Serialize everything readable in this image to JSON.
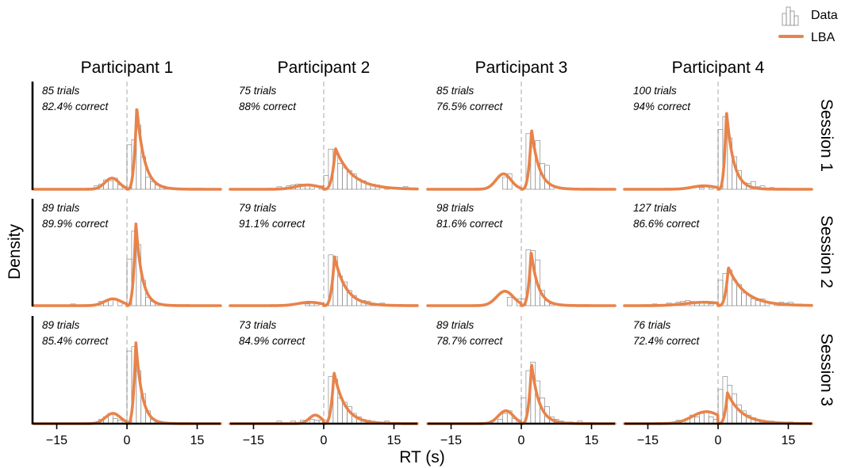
{
  "chart_data": {
    "type": "histogram-density-grid",
    "xlabel": "RT (s)",
    "ylabel": "Density",
    "xlim": [
      -20,
      20
    ],
    "xticks": [
      -15,
      0,
      15
    ],
    "participants": [
      "Participant 1",
      "Participant 2",
      "Participant 3",
      "Participant 4"
    ],
    "sessions": [
      "Session 1",
      "Session 2",
      "Session 3"
    ],
    "legend": [
      {
        "label": "Data",
        "kind": "histogram",
        "color": "#8a8a8a"
      },
      {
        "label": "LBA",
        "kind": "line",
        "color": "#E8834A"
      }
    ],
    "colors": {
      "model": "#E8834A",
      "bars": "#8a8a8a",
      "zero_line": "#c8c8c8",
      "axis": "#000000"
    },
    "panels": [
      {
        "session": 1,
        "participant": 1,
        "trials_label": "85 trials",
        "correct_label": "82.4% correct",
        "ymax": 1.0,
        "hist": [
          [
            -7,
            0.04
          ],
          [
            -6,
            0.06
          ],
          [
            -5,
            0.11
          ],
          [
            -4,
            0.1
          ],
          [
            -3,
            0.13
          ],
          [
            -2,
            0.05
          ],
          [
            -1,
            0.03
          ],
          [
            1,
            0.52
          ],
          [
            2,
            0.58
          ],
          [
            3,
            0.75
          ],
          [
            4,
            0.38
          ],
          [
            5,
            0.14
          ],
          [
            6,
            0.09
          ],
          [
            7,
            0.05
          ],
          [
            8,
            0.04
          ],
          [
            9,
            0.02
          ],
          [
            11,
            0.01
          ]
        ],
        "lba": {
          "err_peak": 0.13,
          "err_mode": -3.2,
          "err_width": 1.5,
          "cor_peak": 0.96,
          "cor_mode": 2.1,
          "cor_tau": 1.6
        }
      },
      {
        "session": 1,
        "participant": 2,
        "trials_label": "75 trials",
        "correct_label": "88% correct",
        "ymax": 1.0,
        "hist": [
          [
            -10,
            0.03
          ],
          [
            -8,
            0.04
          ],
          [
            -7,
            0.05
          ],
          [
            -6,
            0.06
          ],
          [
            -5,
            0.06
          ],
          [
            -4,
            0.05
          ],
          [
            -3,
            0.04
          ],
          [
            -1,
            0.04
          ],
          [
            1,
            0.16
          ],
          [
            2,
            0.47
          ],
          [
            3,
            0.4
          ],
          [
            4,
            0.3
          ],
          [
            5,
            0.25
          ],
          [
            6,
            0.22
          ],
          [
            7,
            0.18
          ],
          [
            8,
            0.12
          ],
          [
            9,
            0.1
          ],
          [
            10,
            0.07
          ],
          [
            11,
            0.06
          ],
          [
            12,
            0.05
          ],
          [
            14,
            0.03
          ],
          [
            16,
            0.02
          ],
          [
            18,
            0.03
          ]
        ],
        "lba": {
          "err_peak": 0.05,
          "err_mode": -3.5,
          "err_width": 2.5,
          "cor_peak": 0.48,
          "cor_mode": 2.5,
          "cor_tau": 3.5
        }
      },
      {
        "session": 1,
        "participant": 3,
        "trials_label": "85 trials",
        "correct_label": "76.5% correct",
        "ymax": 1.0,
        "hist": [
          [
            -4,
            0.14
          ],
          [
            -3,
            0.18
          ],
          [
            2,
            0.65
          ],
          [
            3,
            0.5
          ],
          [
            4,
            0.57
          ],
          [
            5,
            0.3
          ],
          [
            6,
            0.28
          ],
          [
            7,
            0.04
          ]
        ],
        "lba": {
          "err_peak": 0.18,
          "err_mode": -3.8,
          "err_width": 1.6,
          "cor_peak": 0.7,
          "cor_mode": 2.2,
          "cor_tau": 1.6
        }
      },
      {
        "session": 1,
        "participant": 4,
        "trials_label": "100 trials",
        "correct_label": "94% correct",
        "ymax": 1.0,
        "hist": [
          [
            -4,
            0.02
          ],
          [
            -2,
            0.02
          ],
          [
            1,
            0.7
          ],
          [
            2,
            0.85
          ],
          [
            3,
            0.6
          ],
          [
            4,
            0.38
          ],
          [
            5,
            0.22
          ],
          [
            6,
            0.08
          ],
          [
            7,
            0.07
          ],
          [
            8,
            0.09
          ],
          [
            9,
            0.03
          ],
          [
            10,
            0.04
          ],
          [
            12,
            0.02
          ]
        ],
        "lba": {
          "err_peak": 0.04,
          "err_mode": -3.0,
          "err_width": 2.5,
          "cor_peak": 0.91,
          "cor_mode": 1.8,
          "cor_tau": 1.5
        }
      },
      {
        "session": 2,
        "participant": 1,
        "trials_label": "89 trials",
        "correct_label": "89.9% correct",
        "ymax": 1.0,
        "hist": [
          [
            -12,
            0.02
          ],
          [
            -6,
            0.05
          ],
          [
            -5,
            0.05
          ],
          [
            -4,
            0.08
          ],
          [
            -2,
            0.05
          ],
          [
            1,
            0.55
          ],
          [
            2,
            0.88
          ],
          [
            3,
            0.72
          ],
          [
            4,
            0.3
          ],
          [
            5,
            0.1
          ],
          [
            6,
            0.05
          ],
          [
            7,
            0.02
          ]
        ],
        "lba": {
          "err_peak": 0.08,
          "err_mode": -3.0,
          "err_width": 1.8,
          "cor_peak": 0.98,
          "cor_mode": 1.9,
          "cor_tau": 1.3
        }
      },
      {
        "session": 2,
        "participant": 2,
        "trials_label": "79 trials",
        "correct_label": "91.1% correct",
        "ymax": 1.0,
        "hist": [
          [
            -4,
            0.02
          ],
          [
            -3,
            0.04
          ],
          [
            -2,
            0.04
          ],
          [
            1,
            0.02
          ],
          [
            2,
            0.6
          ],
          [
            3,
            0.58
          ],
          [
            4,
            0.35
          ],
          [
            5,
            0.28
          ],
          [
            6,
            0.18
          ],
          [
            7,
            0.12
          ],
          [
            8,
            0.07
          ],
          [
            9,
            0.06
          ],
          [
            10,
            0.05
          ],
          [
            11,
            0.03
          ],
          [
            12,
            0.02
          ],
          [
            13,
            0.03
          ]
        ],
        "lba": {
          "err_peak": 0.04,
          "err_mode": -3.0,
          "err_width": 2.5,
          "cor_peak": 0.58,
          "cor_mode": 2.3,
          "cor_tau": 2.4
        }
      },
      {
        "session": 2,
        "participant": 3,
        "trials_label": "98 trials",
        "correct_label": "81.6% correct",
        "ymax": 1.0,
        "hist": [
          [
            -3,
            0.1
          ],
          [
            -1,
            0.08
          ],
          [
            1,
            0.08
          ],
          [
            2,
            0.66
          ],
          [
            3,
            0.65
          ],
          [
            4,
            0.54
          ],
          [
            5,
            0.18
          ],
          [
            6,
            0.06
          ],
          [
            7,
            0.02
          ]
        ],
        "lba": {
          "err_peak": 0.17,
          "err_mode": -3.5,
          "err_width": 1.8,
          "cor_peak": 0.64,
          "cor_mode": 2.1,
          "cor_tau": 1.5
        }
      },
      {
        "session": 2,
        "participant": 4,
        "trials_label": "127 trials",
        "correct_label": "86.6% correct",
        "ymax": 1.0,
        "hist": [
          [
            -14,
            0.02
          ],
          [
            -11,
            0.03
          ],
          [
            -9,
            0.04
          ],
          [
            -8,
            0.05
          ],
          [
            -7,
            0.06
          ],
          [
            -6,
            0.05
          ],
          [
            -5,
            0.04
          ],
          [
            -4,
            0.05
          ],
          [
            -3,
            0.03
          ],
          [
            -2,
            0.02
          ],
          [
            1,
            0.3
          ],
          [
            2,
            0.38
          ],
          [
            3,
            0.42
          ],
          [
            4,
            0.3
          ],
          [
            5,
            0.25
          ],
          [
            6,
            0.15
          ],
          [
            7,
            0.13
          ],
          [
            8,
            0.08
          ],
          [
            9,
            0.06
          ],
          [
            10,
            0.08
          ],
          [
            11,
            0.04
          ],
          [
            13,
            0.02
          ],
          [
            14,
            0.04
          ],
          [
            15,
            0.03
          ],
          [
            16,
            0.04
          ],
          [
            17,
            0.02
          ],
          [
            18,
            0.02
          ]
        ],
        "lba": {
          "err_peak": 0.04,
          "err_mode": -3.0,
          "err_width": 4.0,
          "cor_peak": 0.45,
          "cor_mode": 2.2,
          "cor_tau": 3.5
        }
      },
      {
        "session": 3,
        "participant": 1,
        "trials_label": "89 trials",
        "correct_label": "85.4% correct",
        "ymax": 1.0,
        "hist": [
          [
            -6,
            0.05
          ],
          [
            -5,
            0.08
          ],
          [
            -4,
            0.12
          ],
          [
            -3,
            0.06
          ],
          [
            -2,
            0.04
          ],
          [
            1,
            0.85
          ],
          [
            2,
            0.9
          ],
          [
            3,
            0.62
          ],
          [
            4,
            0.35
          ],
          [
            5,
            0.15
          ],
          [
            6,
            0.05
          ],
          [
            7,
            0.02
          ]
        ],
        "lba": {
          "err_peak": 0.12,
          "err_mode": -3.0,
          "err_width": 1.6,
          "cor_peak": 0.96,
          "cor_mode": 1.9,
          "cor_tau": 1.3
        }
      },
      {
        "session": 3,
        "participant": 2,
        "trials_label": "73 trials",
        "correct_label": "84.9% correct",
        "ymax": 1.0,
        "hist": [
          [
            -10,
            0.03
          ],
          [
            -7,
            0.03
          ],
          [
            -5,
            0.04
          ],
          [
            -3,
            0.05
          ],
          [
            -2,
            0.04
          ],
          [
            -1,
            0.04
          ],
          [
            1,
            0.04
          ],
          [
            2,
            0.55
          ],
          [
            3,
            0.52
          ],
          [
            4,
            0.3
          ],
          [
            5,
            0.25
          ],
          [
            6,
            0.2
          ],
          [
            7,
            0.12
          ],
          [
            8,
            0.08
          ],
          [
            9,
            0.05
          ],
          [
            10,
            0.04
          ],
          [
            11,
            0.03
          ],
          [
            14,
            0.03
          ]
        ],
        "lba": {
          "err_peak": 0.1,
          "err_mode": -1.8,
          "err_width": 1.3,
          "cor_peak": 0.6,
          "cor_mode": 2.2,
          "cor_tau": 2.3
        }
      },
      {
        "session": 3,
        "participant": 3,
        "trials_label": "89 trials",
        "correct_label": "78.7% correct",
        "ymax": 1.0,
        "hist": [
          [
            -5,
            0.05
          ],
          [
            -4,
            0.12
          ],
          [
            -3,
            0.15
          ],
          [
            -2,
            0.06
          ],
          [
            1,
            0.3
          ],
          [
            2,
            0.62
          ],
          [
            3,
            0.72
          ],
          [
            4,
            0.5
          ],
          [
            5,
            0.3
          ],
          [
            6,
            0.2
          ],
          [
            7,
            0.08
          ],
          [
            8,
            0.05
          ],
          [
            9,
            0.03
          ],
          [
            11,
            0.02
          ],
          [
            13,
            0.03
          ]
        ],
        "lba": {
          "err_peak": 0.15,
          "err_mode": -3.3,
          "err_width": 1.6,
          "cor_peak": 0.7,
          "cor_mode": 2.2,
          "cor_tau": 1.6
        }
      },
      {
        "session": 3,
        "participant": 4,
        "trials_label": "76 trials",
        "correct_label": "72.4% correct",
        "ymax": 1.0,
        "hist": [
          [
            -9,
            0.04
          ],
          [
            -7,
            0.06
          ],
          [
            -6,
            0.1
          ],
          [
            -5,
            0.08
          ],
          [
            -4,
            0.12
          ],
          [
            -3,
            0.14
          ],
          [
            -2,
            0.08
          ],
          [
            -1,
            0.05
          ],
          [
            1,
            0.4
          ],
          [
            2,
            0.55
          ],
          [
            3,
            0.45
          ],
          [
            4,
            0.35
          ],
          [
            5,
            0.22
          ],
          [
            6,
            0.15
          ],
          [
            7,
            0.1
          ],
          [
            8,
            0.07
          ],
          [
            9,
            0.05
          ],
          [
            10,
            0.04
          ],
          [
            11,
            0.03
          ],
          [
            12,
            0.03
          ],
          [
            14,
            0.02
          ],
          [
            16,
            0.02
          ]
        ],
        "lba": {
          "err_peak": 0.14,
          "err_mode": -2.5,
          "err_width": 3.0,
          "cor_peak": 0.36,
          "cor_mode": 2.0,
          "cor_tau": 3.0
        }
      }
    ]
  }
}
